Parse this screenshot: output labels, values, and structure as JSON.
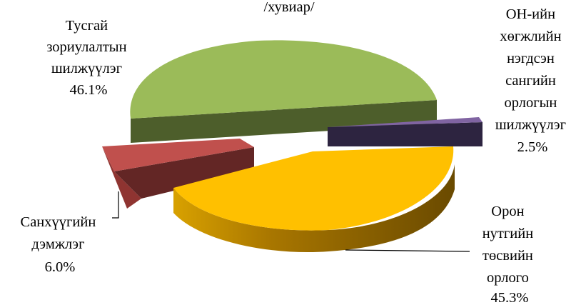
{
  "chart_data": {
    "type": "pie",
    "style": "3d-exploded",
    "title": "/хувиар/",
    "slices": [
      {
        "label_lines": [
          "Тусгай",
          "зориулалтын",
          "шилжүүлэг",
          "46.1%"
        ],
        "value": 46.1,
        "color": "#9bbb59"
      },
      {
        "label_lines": [
          "ОН-ийн",
          "хөгжлийн",
          "нэгдсэн",
          "сангийн",
          "орлогын",
          "шилжүүлэг",
          "2.5%"
        ],
        "value": 2.5,
        "color": "#8064a2"
      },
      {
        "label_lines": [
          "Орон",
          "нутгийн",
          "төсвийн",
          "орлого",
          "45.3%"
        ],
        "value": 45.3,
        "color": "#ffc000"
      },
      {
        "label_lines": [
          "Санхүүгийн",
          "дэмжлэг",
          "6.0%"
        ],
        "value": 6.0,
        "color": "#c0504d"
      }
    ]
  }
}
